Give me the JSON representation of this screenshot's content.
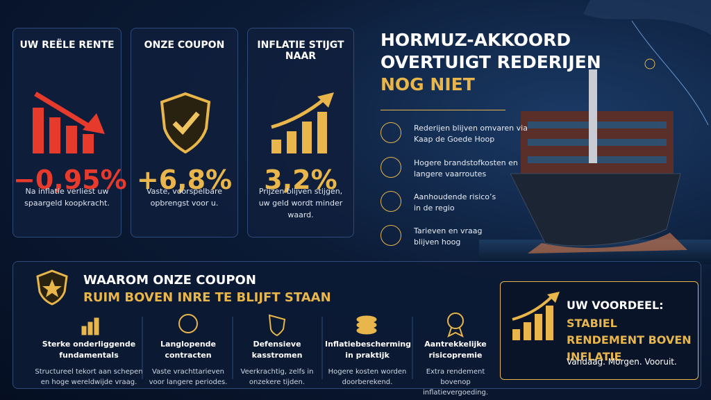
{
  "cards": [
    {
      "title": "UW REËLE RENTE",
      "value": "−0,95%",
      "text": "Na inflatie verliest uw spaargeld koopkracht."
    },
    {
      "title": "ONZE COUPON",
      "value": "+6,8%",
      "text": "Vaste, voorspelbare opbrengst voor u."
    },
    {
      "title": "INFLATIE STIJGT NAAR",
      "value": "3,2%",
      "text": "Prijzen blijven stijgen, uw geld wordt minder waard."
    }
  ],
  "headline": {
    "line1": "HORMUZ-AKKOORD",
    "line2": "OVERTUIGT REDERIJEN",
    "line3": "NOG NIET"
  },
  "points": [
    "Rederijen blijven omvaren via Kaap de Goede Hoop",
    "Hogere brandstofkosten en langere vaarroutes",
    "Aanhoudende risico’s in de regio",
    "Tarieven en vraag blijven hoog"
  ],
  "section": {
    "title": "WAAROM ONZE COUPON",
    "subtitle": "RUIM BOVEN INRE TE BLIJFT STAAN"
  },
  "features": [
    {
      "title": "Sterke onderliggende fundamentals",
      "text": "Structureel tekort aan schepen en hoge wereldwijde vraag."
    },
    {
      "title": "Langlopende contracten",
      "text": "Vaste vrachttarieven voor langere periodes."
    },
    {
      "title": "Defensieve kasstromen",
      "text": "Veerkrachtig, zelfs in onzekere tijden."
    },
    {
      "title": "Inflatiebescherming in praktijk",
      "text": "Hogere kosten worden doorberekend."
    },
    {
      "title": "Aantrekkelijke risicopremie",
      "text": "Extra rendement bovenop inflatievergoeding."
    }
  ],
  "benefit": {
    "title": "UW VOORDEEL:",
    "highlight": "STABIEL RENDEMENT BOVEN INFLATIE",
    "tagline": "Vandaag. Morgen. Vooruit."
  }
}
